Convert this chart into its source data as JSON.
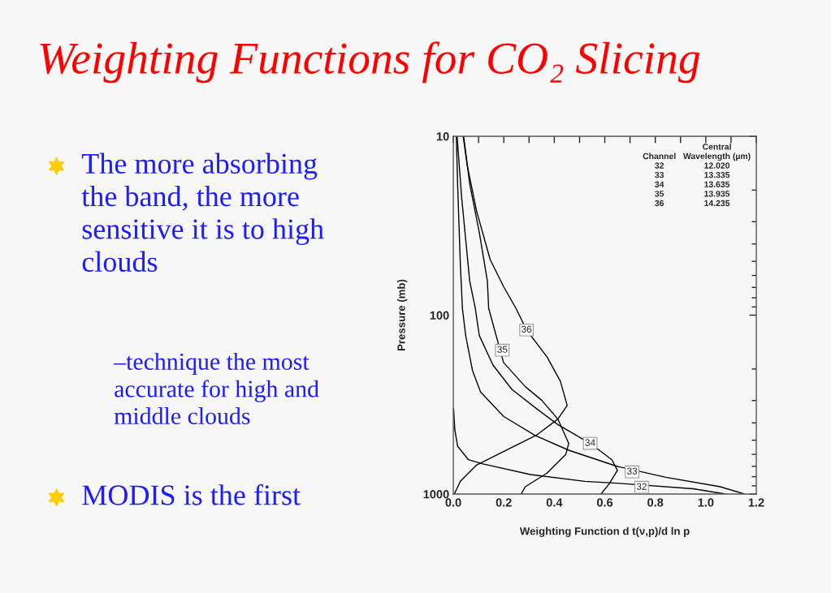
{
  "chart_data": {
    "type": "line",
    "title": "Weighting Functions for CO₂ Slicing",
    "xlabel": "Weighting Function d t(ν,p)/d ln p",
    "ylabel": "Pressure (mb)",
    "xlim": [
      0,
      1.2
    ],
    "xticks": [
      {
        "value": 0,
        "label": "0.0"
      },
      {
        "value": 0.1,
        "label": null
      },
      {
        "value": 0.2,
        "label": "0.2"
      },
      {
        "value": 0.3,
        "label": null
      },
      {
        "value": 0.4,
        "label": "0.4"
      },
      {
        "value": 0.5,
        "label": null
      },
      {
        "value": 0.6,
        "label": "0.6"
      },
      {
        "value": 0.7,
        "label": null
      },
      {
        "value": 0.8,
        "label": "0.8"
      },
      {
        "value": 0.9,
        "label": null
      },
      {
        "value": 1.0,
        "label": "1.0"
      },
      {
        "value": 1.1,
        "label": null
      },
      {
        "value": 1.2,
        "label": "1.2"
      }
    ],
    "ylim": [
      1000,
      10
    ],
    "yticks": [
      10,
      100,
      1000
    ],
    "log": "y",
    "grid": false,
    "legend": false,
    "series": [
      {
        "color": "#000000",
        "x": [
          0.001,
          0.006,
          0.017,
          0.06,
          0.114,
          0.306,
          0.521,
          0.66,
          0.95,
          1.078
        ],
        "values": [
          332,
          438,
          540,
          643,
          677,
          778,
          849,
          872,
          935,
          1000
        ]
      },
      {
        "color": "#000000",
        "x": [
          0.012,
          0.017,
          0.028,
          0.036,
          0.049,
          0.076,
          0.108,
          0.199,
          0.323,
          0.457,
          0.65,
          0.842,
          1.057,
          1.153
        ],
        "values": [
          10,
          18.5,
          52.5,
          91.5,
          130,
          204,
          269,
          368,
          470,
          569,
          701,
          806,
          910,
          1000
        ]
      },
      {
        "color": "#000000",
        "x": [
          0.015,
          0.033,
          0.065,
          0.087,
          0.103,
          0.157,
          0.232,
          0.328,
          0.414,
          0.542,
          0.628,
          0.65,
          0.617,
          0.585
        ],
        "values": [
          10,
          22,
          64.6,
          91.5,
          130,
          190,
          260,
          332,
          409,
          521,
          643,
          738,
          879,
          1000
        ]
      },
      {
        "color": "#000000",
        "x": [
          0.041,
          0.065,
          0.103,
          0.135,
          0.14,
          0.199,
          0.285,
          0.35,
          0.414,
          0.457,
          0.446,
          0.371,
          0.285,
          0.269
        ],
        "values": [
          10,
          18.5,
          34.5,
          64.6,
          91.5,
          184,
          251,
          299,
          381,
          521,
          599,
          764,
          910,
          1000
        ]
      },
      {
        "color": "#000000",
        "x": [
          0.039,
          0.055,
          0.092,
          0.146,
          0.199,
          0.248,
          0.29,
          0.371,
          0.424,
          0.451,
          0.414,
          0.328,
          0.199,
          0.092,
          0.028,
          0.004
        ],
        "values": [
          10,
          14.5,
          26.1,
          48.9,
          69.2,
          91.5,
          121,
          171,
          234,
          320,
          381,
          470,
          579,
          689,
          849,
          1000
        ]
      }
    ],
    "annotations": [
      "The more absorbing\nthe band, the more\nsensitive it is to high\nclouds",
      "–technique the most\naccurate for high and\nmiddle clouds",
      "MODIS is the first",
      "Channel\n32\n33\n34\n35\n36",
      "Central\nWavelength (µm)\n12.020\n13.335\n13.635\n13.935\n14.235",
      {
        "text": "36",
        "x": 0.29,
        "y": 121
      },
      {
        "text": "35",
        "x": 0.194,
        "y": 157
      },
      {
        "text": "34",
        "x": 0.542,
        "y": 521
      },
      {
        "text": "33",
        "x": 0.708,
        "y": 752
      },
      {
        "text": "32",
        "x": 0.746,
        "y": 917
      }
    ]
  }
}
